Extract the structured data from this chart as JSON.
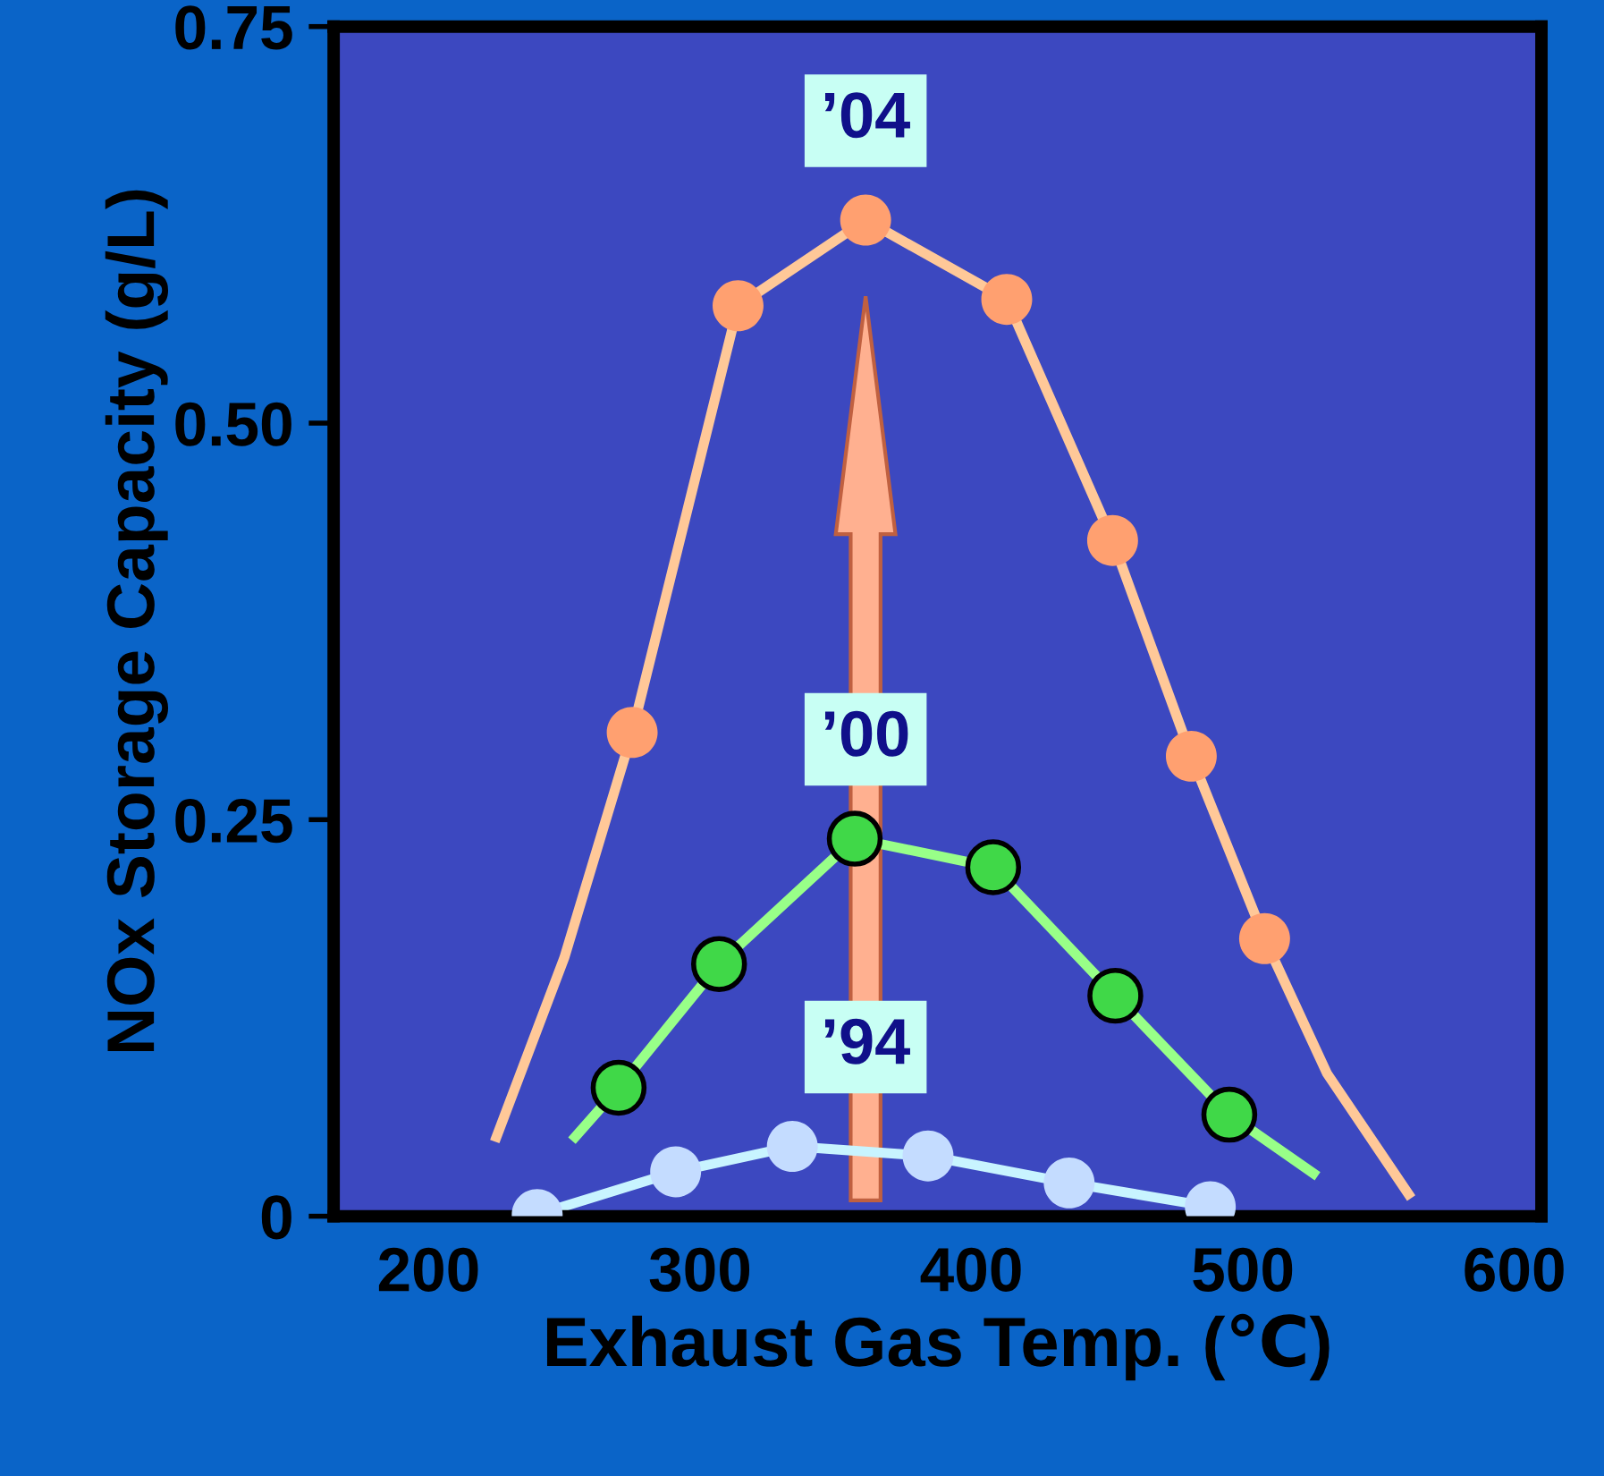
{
  "chart_data": {
    "type": "line",
    "xlabel": "Exhaust Gas Temp. (℃)",
    "ylabel": "NOx Storage Capacity (g/L)",
    "xlim": [
      165,
      610
    ],
    "xticks": [
      200,
      300,
      400,
      500,
      600
    ],
    "ylim": [
      0,
      0.75
    ],
    "yticks": [
      0,
      0.25,
      {
        "value": 0.5,
        "label": "0.50"
      },
      0.75
    ],
    "grid": false,
    "legend": false,
    "series": [
      {
        "color": "#ffc898",
        "marker": "none",
        "x": [
          225,
          250,
          275,
          314,
          361,
          413,
          452,
          481,
          508,
          531,
          561
        ],
        "values": [
          0.05,
          0.163,
          0.305,
          0.574,
          0.628,
          0.578,
          0.426,
          0.29,
          0.175,
          0.09,
          0.014
        ]
      },
      {
        "type": "scatter",
        "color": "#ffa070",
        "marker": "circle",
        "x": [
          275,
          314,
          361,
          413,
          452,
          481,
          508
        ],
        "values": [
          0.305,
          0.574,
          0.628,
          0.578,
          0.426,
          0.29,
          0.175
        ]
      },
      {
        "color": "#98ff88",
        "marker": "none",
        "x": [
          254,
          270,
          307,
          357,
          408,
          453,
          495,
          526
        ],
        "values": [
          0.05,
          0.081,
          0.159,
          0.238,
          0.22,
          0.139,
          0.064,
          0.027
        ]
      },
      {
        "type": "scatter",
        "color": "#40d848",
        "marker": "circle",
        "x": [
          270,
          307,
          357,
          408,
          453,
          495
        ],
        "values": [
          0.081,
          0.159,
          0.238,
          0.22,
          0.139,
          0.064
        ]
      },
      {
        "color": "#c8f4ff",
        "marker": "none",
        "x": [
          240,
          291,
          334,
          384,
          436,
          488
        ],
        "values": [
          0.001,
          0.028,
          0.044,
          0.038,
          0.021,
          0.006
        ]
      },
      {
        "type": "scatter",
        "color": "#c4dcff",
        "marker": "circle",
        "x": [
          240,
          291,
          334,
          384,
          436,
          488
        ],
        "values": [
          0.001,
          0.028,
          0.044,
          0.038,
          0.021,
          0.006
        ]
      }
    ],
    "annotations": [
      "’04",
      "’00",
      "’94"
    ]
  }
}
